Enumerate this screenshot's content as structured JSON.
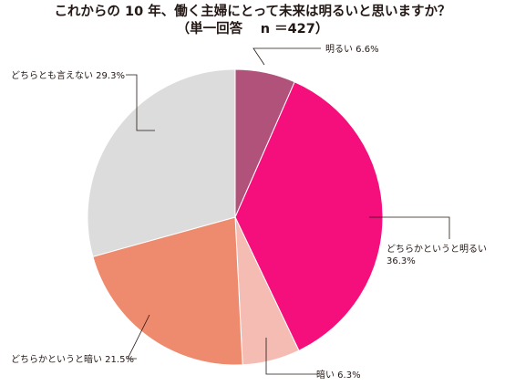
{
  "chart_data": {
    "type": "pie",
    "title": "これからの 10 年、働く主婦にとって未来は明るいと思いますか？",
    "subtitle": "（単一回答　 n ＝427）",
    "slices": [
      {
        "label": "明るい",
        "value": 6.6,
        "value_label": "6.6%",
        "color": "#b0527a"
      },
      {
        "label": "どちらかというと明るい",
        "value": 36.3,
        "value_label": "36.3%",
        "color": "#f50f7d"
      },
      {
        "label": "暗い",
        "value": 6.3,
        "value_label": "6.3%",
        "color": "#f4bcb3"
      },
      {
        "label": "どちらかというと暗い",
        "value": 21.5,
        "value_label": "21.5%",
        "color": "#ee8a6d"
      },
      {
        "label": "どちらとも言えない",
        "value": 29.3,
        "value_label": "29.3%",
        "color": "#dcdcdc"
      }
    ],
    "start_angle": "12 o'clock",
    "direction": "clockwise"
  }
}
